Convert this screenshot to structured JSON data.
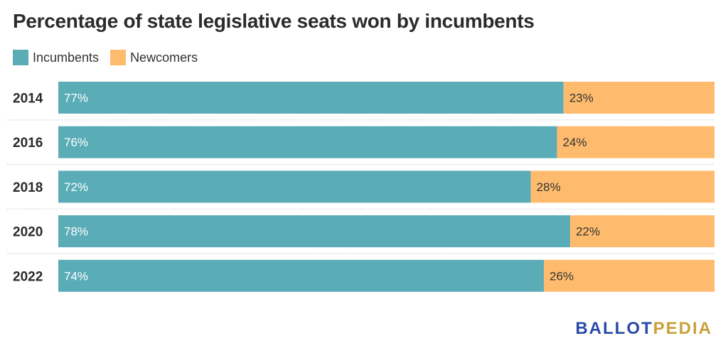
{
  "chart_data": {
    "type": "bar",
    "orientation": "horizontal",
    "stacked": true,
    "title": "Percentage of state legislative seats won by incumbents",
    "categories": [
      "2014",
      "2016",
      "2018",
      "2020",
      "2022"
    ],
    "series": [
      {
        "name": "Incumbents",
        "color": "#5aacb7",
        "values": [
          77,
          76,
          72,
          78,
          74
        ],
        "labels": [
          "77%",
          "76%",
          "72%",
          "78%",
          "74%"
        ]
      },
      {
        "name": "Newcomers",
        "color": "#ffbb6d",
        "values": [
          23,
          24,
          28,
          22,
          26
        ],
        "labels": [
          "23%",
          "24%",
          "28%",
          "22%",
          "26%"
        ]
      }
    ],
    "xlim": [
      0,
      100
    ],
    "legend": "top-left",
    "grid": false
  },
  "colors": {
    "incumbents": "#5aacb7",
    "newcomers": "#ffbb6d",
    "brand_blue": "#2a4aa8",
    "brand_gold": "#c8a13a"
  },
  "brand": {
    "part1": "BALLOT",
    "part2": "PEDIA"
  }
}
